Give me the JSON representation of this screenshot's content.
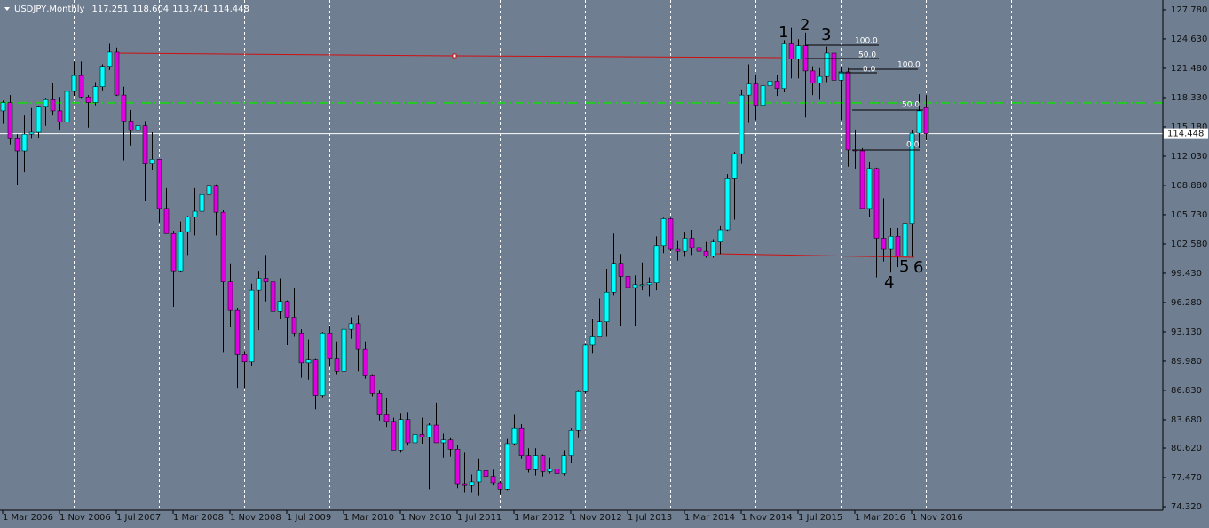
{
  "chart_data": {
    "type": "candlestick",
    "symbol": "USDJPY,Monthly",
    "x": [
      "2006-03",
      "2006-04",
      "2006-05",
      "2006-06",
      "2006-07",
      "2006-08",
      "2006-09",
      "2006-10",
      "2006-11",
      "2006-12",
      "2007-01",
      "2007-02",
      "2007-03",
      "2007-04",
      "2007-05",
      "2007-06",
      "2007-07",
      "2007-08",
      "2007-09",
      "2007-10",
      "2007-11",
      "2007-12",
      "2008-01",
      "2008-02",
      "2008-03",
      "2008-04",
      "2008-05",
      "2008-06",
      "2008-07",
      "2008-08",
      "2008-09",
      "2008-10",
      "2008-11",
      "2008-12",
      "2009-01",
      "2009-02",
      "2009-03",
      "2009-04",
      "2009-05",
      "2009-06",
      "2009-07",
      "2009-08",
      "2009-09",
      "2009-10",
      "2009-11",
      "2009-12",
      "2010-01",
      "2010-02",
      "2010-03",
      "2010-04",
      "2010-05",
      "2010-06",
      "2010-07",
      "2010-08",
      "2010-09",
      "2010-10",
      "2010-11",
      "2010-12",
      "2011-01",
      "2011-02",
      "2011-03",
      "2011-04",
      "2011-05",
      "2011-06",
      "2011-07",
      "2011-08",
      "2011-09",
      "2011-10",
      "2011-11",
      "2011-12",
      "2012-01",
      "2012-02",
      "2012-03",
      "2012-04",
      "2012-05",
      "2012-06",
      "2012-07",
      "2012-08",
      "2012-09",
      "2012-10",
      "2012-11",
      "2012-12",
      "2013-01",
      "2013-02",
      "2013-03",
      "2013-04",
      "2013-05",
      "2013-06",
      "2013-07",
      "2013-08",
      "2013-09",
      "2013-10",
      "2013-11",
      "2013-12",
      "2014-01",
      "2014-02",
      "2014-03",
      "2014-04",
      "2014-05",
      "2014-06",
      "2014-07",
      "2014-08",
      "2014-09",
      "2014-10",
      "2014-11",
      "2014-12",
      "2015-01",
      "2015-02",
      "2015-03",
      "2015-04",
      "2015-05",
      "2015-06",
      "2015-07",
      "2015-08",
      "2015-09",
      "2015-10",
      "2015-11",
      "2015-12",
      "2016-01",
      "2016-02",
      "2016-03",
      "2016-04",
      "2016-05",
      "2016-06",
      "2016-07",
      "2016-08",
      "2016-09",
      "2016-10",
      "2016-11",
      "2016-12",
      "2017-01"
    ],
    "open": [
      116.9,
      117.8,
      113.9,
      112.6,
      114.4,
      114.6,
      117.3,
      118.1,
      116.9,
      115.7,
      119.0,
      120.7,
      118.4,
      117.8,
      119.5,
      121.7,
      123.2,
      118.6,
      115.8,
      114.8,
      115.3,
      111.2,
      111.7,
      106.4,
      103.7,
      99.7,
      103.9,
      105.5,
      106.1,
      107.9,
      108.8,
      106.0,
      98.5,
      95.5,
      90.7,
      89.9,
      97.6,
      98.9,
      98.5,
      95.3,
      96.4,
      94.7,
      93.0,
      89.8,
      90.1,
      86.3,
      93.0,
      90.3,
      88.9,
      93.4,
      94.0,
      91.3,
      88.4,
      86.5,
      84.2,
      83.5,
      80.4,
      83.7,
      81.2,
      82.1,
      81.8,
      83.1,
      81.2,
      81.5,
      80.5,
      76.8,
      76.6,
      77.0,
      78.2,
      77.6,
      76.9,
      76.2,
      81.1,
      82.8,
      79.8,
      78.3,
      79.8,
      78.1,
      78.4,
      77.9,
      79.8,
      82.5,
      86.7,
      91.7,
      92.6,
      94.2,
      97.4,
      100.5,
      99.1,
      97.9,
      98.2,
      98.2,
      98.4,
      102.4,
      105.3,
      102.0,
      101.8,
      103.2,
      102.2,
      101.8,
      101.3,
      102.8,
      104.1,
      109.6,
      112.3,
      118.6,
      119.8,
      117.5,
      119.6,
      120.1,
      119.3,
      124.1,
      122.5,
      123.9,
      121.2,
      119.9,
      120.6,
      123.1,
      120.2,
      121.1,
      112.7,
      112.6,
      106.4,
      110.7,
      103.2,
      102.0,
      103.4,
      101.3,
      104.8,
      114.5,
      117.251
    ],
    "high": [
      118.0,
      118.6,
      114.4,
      116.4,
      117.2,
      117.4,
      118.3,
      119.9,
      118.4,
      119.1,
      122.2,
      122.2,
      118.6,
      120.0,
      121.9,
      124.1,
      123.7,
      119.5,
      117.0,
      117.9,
      115.8,
      114.6,
      111.7,
      108.6,
      104.0,
      105.0,
      105.6,
      108.6,
      108.6,
      110.7,
      109.0,
      106.2,
      100.5,
      95.7,
      91.0,
      98.3,
      99.7,
      101.4,
      99.6,
      98.9,
      96.5,
      97.8,
      93.4,
      92.3,
      90.3,
      93.1,
      93.8,
      92.1,
      93.4,
      94.7,
      94.9,
      92.1,
      88.5,
      86.8,
      86.0,
      83.9,
      84.4,
      84.5,
      83.7,
      83.9,
      83.3,
      85.5,
      82.2,
      81.7,
      81.0,
      80.2,
      77.8,
      79.5,
      78.3,
      78.3,
      77.1,
      81.6,
      84.2,
      83.2,
      80.6,
      80.6,
      79.9,
      79.6,
      78.7,
      80.4,
      82.8,
      86.8,
      91.8,
      94.5,
      96.7,
      99.9,
      103.7,
      101.5,
      101.5,
      99.2,
      100.6,
      99.0,
      103.4,
      105.4,
      105.4,
      102.9,
      103.8,
      104.1,
      103.0,
      102.8,
      103.1,
      104.5,
      110.1,
      112.5,
      119.2,
      121.9,
      120.8,
      120.5,
      122.0,
      120.8,
      124.5,
      125.9,
      124.6,
      125.3,
      121.7,
      121.5,
      123.8,
      123.6,
      121.7,
      121.5,
      114.9,
      112.9,
      111.4,
      110.8,
      107.5,
      104.3,
      104.3,
      105.5,
      114.8,
      118.7,
      118.604
    ],
    "low": [
      115.5,
      113.3,
      108.9,
      110.3,
      113.9,
      114.0,
      115.3,
      116.4,
      114.9,
      115.5,
      118.5,
      118.3,
      115.1,
      117.5,
      119.1,
      121.3,
      118.5,
      111.6,
      113.2,
      114.3,
      107.2,
      110.5,
      104.9,
      103.7,
      95.8,
      99.6,
      101.4,
      103.5,
      103.8,
      107.7,
      103.5,
      90.9,
      93.6,
      87.1,
      87.1,
      89.5,
      93.3,
      96.4,
      94.4,
      94.5,
      91.7,
      92.6,
      88.2,
      88.0,
      84.8,
      86.1,
      89.5,
      88.5,
      88.1,
      92.4,
      88.9,
      88.1,
      86.2,
      83.6,
      82.9,
      80.4,
      80.2,
      80.9,
      81.2,
      81.1,
      76.2,
      81.2,
      79.6,
      79.7,
      76.3,
      75.9,
      75.9,
      75.5,
      76.6,
      76.6,
      75.6,
      76.1,
      80.9,
      79.5,
      78.0,
      77.7,
      77.6,
      77.9,
      77.1,
      77.7,
      79.0,
      81.7,
      86.5,
      90.8,
      92.6,
      92.6,
      97.1,
      93.8,
      97.6,
      93.8,
      97.6,
      96.9,
      97.6,
      101.6,
      101.8,
      100.8,
      101.2,
      101.4,
      100.8,
      101.1,
      101.1,
      101.5,
      104.0,
      105.2,
      111.2,
      115.6,
      115.9,
      116.9,
      118.3,
      118.5,
      118.9,
      120.4,
      120.4,
      116.2,
      118.6,
      118.1,
      120.0,
      119.9,
      115.9,
      110.9,
      110.7,
      106.3,
      105.5,
      99.0,
      100.7,
      99.5,
      100.1,
      101.2,
      101.2,
      112.9,
      113.741
    ],
    "close": [
      117.8,
      113.9,
      112.6,
      114.4,
      114.6,
      117.3,
      118.1,
      116.9,
      115.7,
      119.0,
      120.7,
      118.4,
      117.8,
      119.5,
      121.7,
      123.2,
      118.6,
      115.8,
      114.8,
      115.3,
      111.2,
      111.7,
      106.4,
      103.7,
      99.7,
      103.9,
      105.5,
      106.1,
      107.9,
      108.8,
      106.0,
      98.5,
      95.5,
      90.7,
      89.9,
      97.6,
      98.9,
      98.5,
      95.3,
      96.4,
      94.7,
      93.0,
      89.8,
      90.1,
      86.3,
      93.0,
      90.3,
      88.9,
      93.4,
      94.0,
      91.3,
      88.4,
      86.5,
      84.2,
      83.5,
      80.4,
      83.7,
      81.2,
      82.1,
      81.8,
      83.1,
      81.2,
      81.5,
      80.5,
      76.8,
      76.6,
      77.0,
      78.2,
      77.6,
      76.9,
      76.2,
      81.1,
      82.8,
      79.8,
      78.3,
      79.8,
      78.1,
      78.4,
      77.9,
      79.8,
      82.5,
      86.7,
      91.7,
      92.6,
      94.2,
      97.4,
      100.5,
      99.1,
      97.9,
      98.2,
      98.2,
      98.4,
      102.4,
      105.3,
      102.0,
      101.8,
      103.2,
      102.2,
      101.8,
      101.3,
      102.8,
      104.1,
      109.6,
      112.3,
      118.6,
      119.8,
      117.5,
      119.6,
      120.1,
      119.3,
      124.1,
      122.5,
      123.9,
      121.2,
      119.9,
      120.6,
      123.1,
      120.2,
      121.1,
      112.7,
      112.6,
      106.4,
      110.7,
      103.2,
      102.0,
      103.4,
      101.3,
      104.8,
      114.5,
      116.9,
      114.448
    ],
    "up_color": "#00ffff",
    "down_color": "#e000e0",
    "ylim": [
      73.94,
      128.73
    ],
    "yticks": [
      {
        "value": 127.78,
        "label": "127.780"
      },
      {
        "value": 124.63,
        "label": "124.630"
      },
      {
        "value": 121.48,
        "label": "121.480"
      },
      {
        "value": 118.33,
        "label": "118.330"
      },
      {
        "value": 115.18,
        "label": "115.180"
      },
      {
        "value": 112.03,
        "label": "112.030"
      },
      {
        "value": 108.88,
        "label": "108.880"
      },
      {
        "value": 105.73,
        "label": "105.730"
      },
      {
        "value": 102.58,
        "label": "102.580"
      },
      {
        "value": 99.43,
        "label": "99.430"
      },
      {
        "value": 96.28,
        "label": "96.280"
      },
      {
        "value": 93.13,
        "label": "93.130"
      },
      {
        "value": 89.98,
        "label": "89.980"
      },
      {
        "value": 86.83,
        "label": "86.830"
      },
      {
        "value": 83.68,
        "label": "83.680"
      },
      {
        "value": 80.62,
        "label": "80.620"
      },
      {
        "value": 77.47,
        "label": "77.470"
      },
      {
        "value": 74.32,
        "label": "74.320"
      }
    ],
    "xticks": [
      {
        "value": "2006-03",
        "label": "1 Mar 2006"
      },
      {
        "value": "2006-11",
        "label": "1 Nov 2006"
      },
      {
        "value": "2007-07",
        "label": "1 Jul 2007"
      },
      {
        "value": "2008-03",
        "label": "1 Mar 2008"
      },
      {
        "value": "2008-11",
        "label": "1 Nov 2008"
      },
      {
        "value": "2009-07",
        "label": "1 Jul 2009"
      },
      {
        "value": "2010-03",
        "label": "1 Mar 2010"
      },
      {
        "value": "2010-11",
        "label": "1 Nov 2010"
      },
      {
        "value": "2011-07",
        "label": "1 Jul 2011"
      },
      {
        "value": "2012-03",
        "label": "1 Mar 2012"
      },
      {
        "value": "2012-11",
        "label": "1 Nov 2012"
      },
      {
        "value": "2013-07",
        "label": "1 Jul 2013"
      },
      {
        "value": "2014-03",
        "label": "1 Mar 2014"
      },
      {
        "value": "2014-11",
        "label": "1 Nov 2014"
      },
      {
        "value": "2015-07",
        "label": "1 Jul 2015"
      },
      {
        "value": "2016-03",
        "label": "1 Mar 2016"
      },
      {
        "value": "2016-11",
        "label": "1 Nov 2016"
      }
    ],
    "xgrid": [
      "2007-01",
      "2008-01",
      "2009-01",
      "2010-01",
      "2011-01",
      "2012-01",
      "2013-01",
      "2014-01",
      "2015-01",
      "2016-01",
      "2017-01",
      "2018-01"
    ],
    "price_line": {
      "value": 114.448,
      "label": "114.448",
      "color": "#ffffff"
    },
    "level_line": {
      "value": 117.76,
      "color": "#22cc22"
    },
    "annotations": {
      "waves": [
        "1",
        "2",
        "3",
        "4",
        "5",
        "6"
      ],
      "fib1": [
        "100.0",
        "50.0",
        "0.0"
      ],
      "fib2": [
        "100.0",
        "50.0",
        "0.0"
      ]
    }
  }
}
